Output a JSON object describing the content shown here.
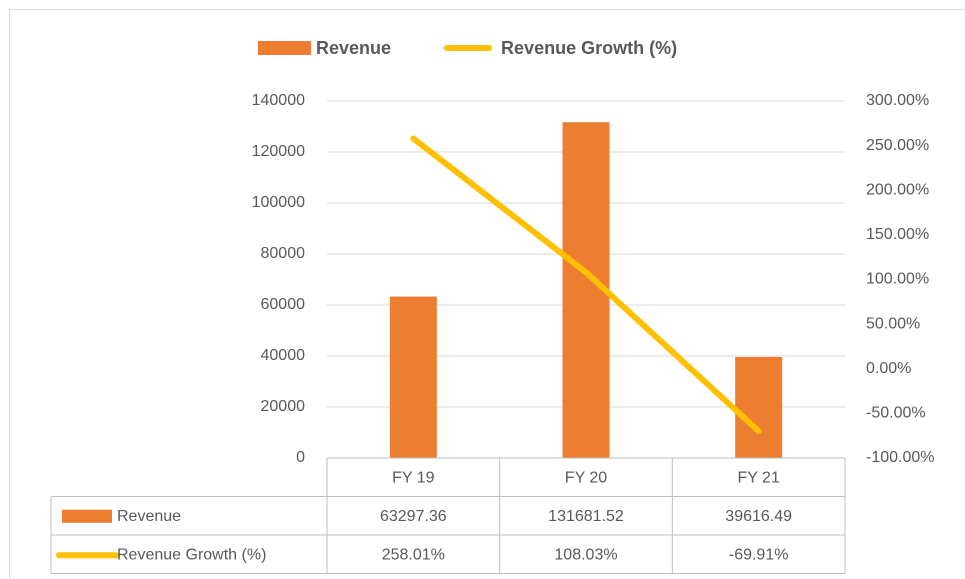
{
  "chart_data": {
    "type": "bar",
    "categories": [
      "FY 19",
      "FY 20",
      "FY 21"
    ],
    "series": [
      {
        "name": "Revenue",
        "type": "bar",
        "color": "#ED7D31",
        "values": [
          63297.36,
          131681.52,
          39616.49
        ]
      },
      {
        "name": "Revenue Growth (%)",
        "type": "line",
        "axis": "y2",
        "color": "#FFC000",
        "values": [
          258.01,
          108.03,
          -69.91
        ],
        "value_labels": [
          "258.01%",
          "108.03%",
          "-69.91%"
        ]
      }
    ],
    "ylim": [
      0,
      140000
    ],
    "yticks": [
      0,
      20000,
      40000,
      60000,
      80000,
      100000,
      120000,
      140000
    ],
    "y2lim": [
      -100,
      300
    ],
    "y2ticks": [
      {
        "value": -100,
        "label": "-100.00%"
      },
      {
        "value": -50,
        "label": "-50.00%"
      },
      {
        "value": 0,
        "label": "0.00%"
      },
      {
        "value": 50,
        "label": "50.00%"
      },
      {
        "value": 100,
        "label": "100.00%"
      },
      {
        "value": 150,
        "label": "150.00%"
      },
      {
        "value": 200,
        "label": "200.00%"
      },
      {
        "value": 250,
        "label": "250.00%"
      },
      {
        "value": 300,
        "label": "300.00%"
      }
    ],
    "grid": true,
    "legend": "top",
    "data_table": true
  }
}
